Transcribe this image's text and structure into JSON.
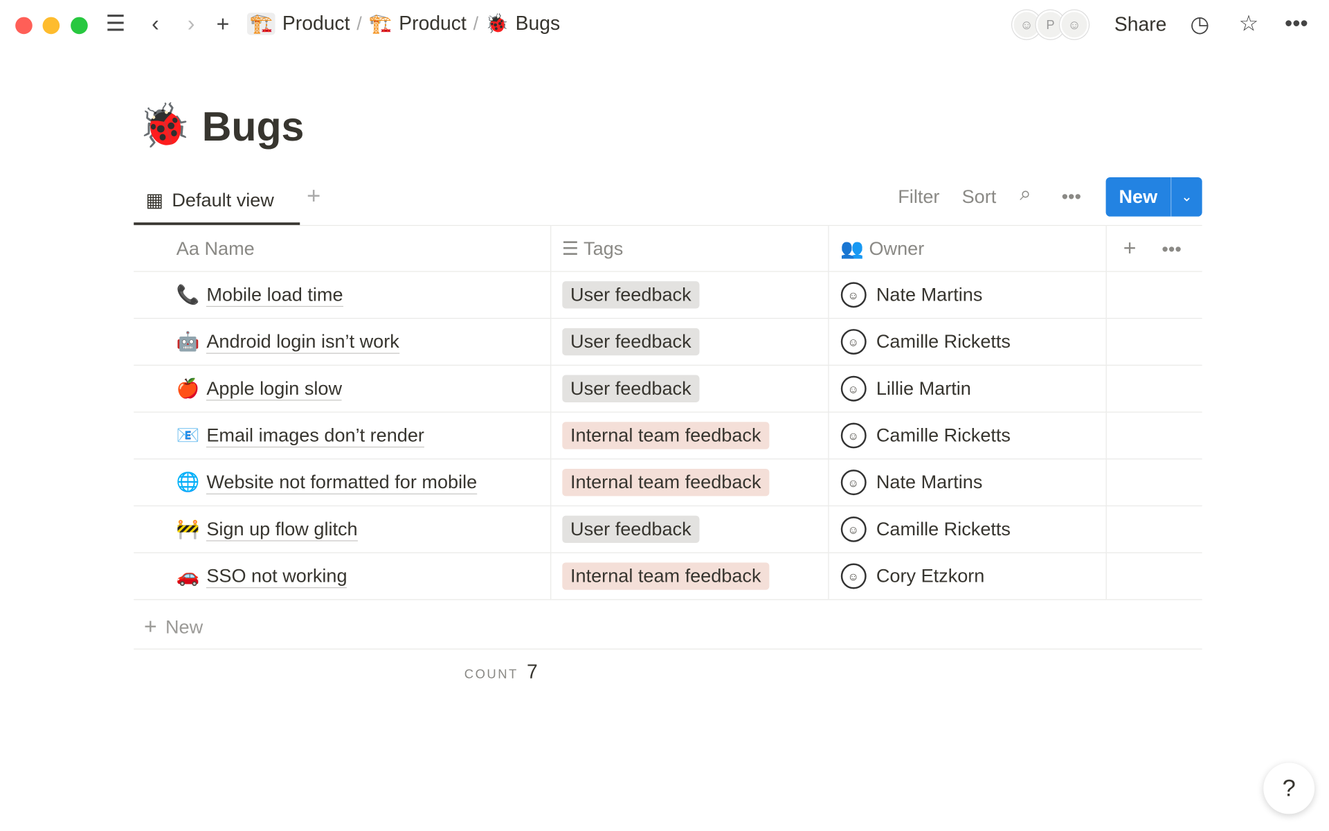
{
  "window": {
    "lights": [
      "#ff5f57",
      "#febc2e",
      "#28c840"
    ]
  },
  "breadcrumb": [
    {
      "icon": "🏗️",
      "label": "Product"
    },
    {
      "icon": "🏗️",
      "label": "Product"
    },
    {
      "icon": "🐞",
      "label": "Bugs"
    }
  ],
  "breadcrumb_sep": "/",
  "topbar": {
    "share": "Share",
    "avatar_initial": "P"
  },
  "page": {
    "icon": "🐞",
    "title": "Bugs"
  },
  "view": {
    "tab": "Default view",
    "filter": "Filter",
    "sort": "Sort",
    "new": "New"
  },
  "columns": {
    "name": "Name",
    "name_icon": "Aa",
    "tags": "Tags",
    "owner": "Owner"
  },
  "rows": [
    {
      "icon": "📞",
      "name": "Mobile load time",
      "tag": "User feedback",
      "tag_color": "#e3e2e0",
      "owner": "Nate Martins"
    },
    {
      "icon": "🤖",
      "name": "Android login isn’t work",
      "tag": "User feedback",
      "tag_color": "#e3e2e0",
      "owner": "Camille Ricketts"
    },
    {
      "icon": "🍎",
      "name": "Apple login slow",
      "tag": "User feedback",
      "tag_color": "#e3e2e0",
      "owner": "Lillie Martin"
    },
    {
      "icon": "📧",
      "name": "Email images don’t render",
      "tag": "Internal team feedback",
      "tag_color": "#f4dfd8",
      "owner": "Camille Ricketts"
    },
    {
      "icon": "🌐",
      "name": "Website not formatted for mobile",
      "tag": "Internal team feedback",
      "tag_color": "#f4dfd8",
      "owner": "Nate Martins"
    },
    {
      "icon": "🚧",
      "name": "Sign up flow glitch",
      "tag": "User feedback",
      "tag_color": "#e3e2e0",
      "owner": "Camille Ricketts"
    },
    {
      "icon": "🚗",
      "name": "SSO not working",
      "tag": "Internal team feedback",
      "tag_color": "#f4dfd8",
      "owner": "Cory Etzkorn"
    }
  ],
  "footer": {
    "new_row": "New",
    "count_label": "COUNT",
    "count": "7"
  },
  "help": "?"
}
